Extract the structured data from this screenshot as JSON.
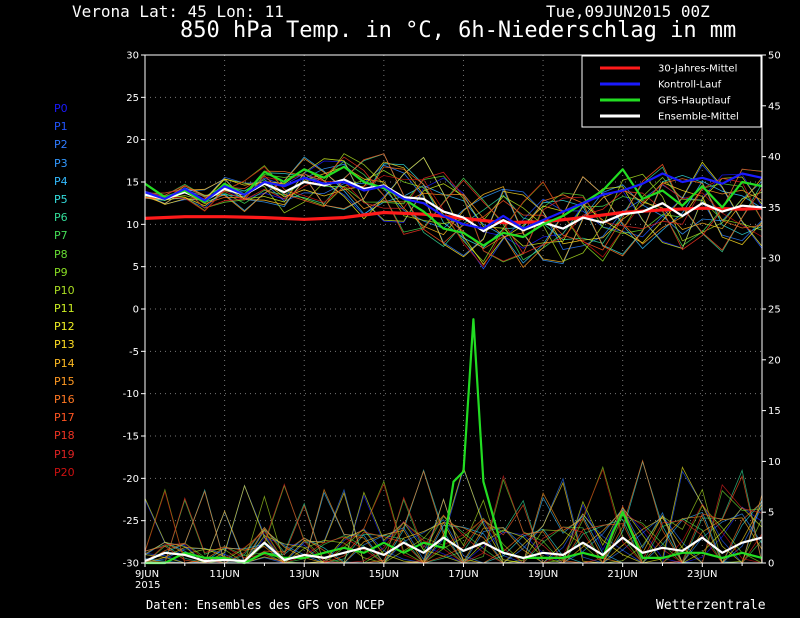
{
  "header": {
    "station": "Verona   Lat: 45 Lon: 11",
    "run": "Tue,09JUN2015 00Z",
    "title": "850 hPa Temp. in °C, 6h-Niederschlag in mm"
  },
  "footer": {
    "source": "Daten: Ensembles des GFS von NCEP",
    "brand": "Wetterzentrale"
  },
  "members": [
    {
      "label": "P0",
      "color": "#1a1aff"
    },
    {
      "label": "P1",
      "color": "#2255ff"
    },
    {
      "label": "P2",
      "color": "#2f7bff"
    },
    {
      "label": "P3",
      "color": "#3399ff"
    },
    {
      "label": "P4",
      "color": "#33bbff"
    },
    {
      "label": "P5",
      "color": "#33dddd"
    },
    {
      "label": "P6",
      "color": "#33dd99"
    },
    {
      "label": "P7",
      "color": "#44dd55"
    },
    {
      "label": "P8",
      "color": "#66dd33"
    },
    {
      "label": "P9",
      "color": "#88dd22"
    },
    {
      "label": "P10",
      "color": "#aadd22"
    },
    {
      "label": "P11",
      "color": "#ccee22"
    },
    {
      "label": "P12",
      "color": "#eeee22"
    },
    {
      "label": "P13",
      "color": "#ffdd22"
    },
    {
      "label": "P14",
      "color": "#ffbb22"
    },
    {
      "label": "P15",
      "color": "#ff9922"
    },
    {
      "label": "P16",
      "color": "#ff7722"
    },
    {
      "label": "P17",
      "color": "#ff5522"
    },
    {
      "label": "P18",
      "color": "#ee3322"
    },
    {
      "label": "P19",
      "color": "#dd2222"
    },
    {
      "label": "P20",
      "color": "#cc1111"
    }
  ],
  "chart_data": {
    "type": "line",
    "title": "850 hPa Temp. in °C, 6h-Niederschlag in mm",
    "x_unit": "days after 09JUN2015 00Z (6-hourly steps)",
    "x_range": [
      0,
      15.5
    ],
    "x_tick_labels": [
      {
        "x": 0,
        "label": "9JUN",
        "sub": "2015"
      },
      {
        "x": 2,
        "label": "11JUN"
      },
      {
        "x": 4,
        "label": "13JUN"
      },
      {
        "x": 6,
        "label": "15JUN"
      },
      {
        "x": 8,
        "label": "17JUN"
      },
      {
        "x": 10,
        "label": "19JUN"
      },
      {
        "x": 12,
        "label": "21JUN"
      },
      {
        "x": 14,
        "label": "23JUN"
      }
    ],
    "y_left": {
      "range": [
        -30,
        30
      ],
      "ticks": [
        30,
        25,
        20,
        15,
        10,
        5,
        0,
        -5,
        -10,
        -15,
        -20,
        -25,
        -30
      ]
    },
    "y_right": {
      "range": [
        0,
        50
      ],
      "ticks": [
        50,
        45,
        40,
        35,
        30,
        25,
        20,
        15,
        10,
        5,
        0
      ]
    },
    "grid": true,
    "legend_position": "top-right",
    "legend": [
      {
        "label": "30-Jahres-Mittel",
        "color": "#ff1a1a"
      },
      {
        "label": "Kontroll-Lauf",
        "color": "#1a1aff"
      },
      {
        "label": "GFS-Hauptlauf",
        "color": "#22dd22"
      },
      {
        "label": "Ensemble-Mittel",
        "color": "#ffffff"
      }
    ],
    "temperature_series": [
      {
        "name": "30-Jahres-Mittel",
        "color": "#ff1a1a",
        "x": [
          0,
          1,
          2,
          3,
          4,
          5,
          5.5,
          6,
          7,
          8,
          9,
          10,
          11,
          12,
          13,
          14,
          15,
          15.5
        ],
        "y": [
          10.7,
          10.9,
          10.9,
          10.8,
          10.6,
          10.8,
          11.1,
          11.4,
          11.2,
          10.7,
          10.2,
          10.3,
          10.8,
          11.4,
          11.7,
          11.9,
          11.8,
          11.9
        ]
      },
      {
        "name": "Ensemble-Mittel",
        "color": "#ffffff",
        "x": [
          0,
          0.5,
          1,
          1.5,
          2,
          2.5,
          3,
          3.5,
          4,
          4.5,
          5,
          5.5,
          6,
          6.5,
          7,
          7.5,
          8,
          8.5,
          9,
          9.5,
          10,
          10.5,
          11,
          11.5,
          12,
          12.5,
          13,
          13.5,
          14,
          14.5,
          15,
          15.5
        ],
        "y": [
          13.5,
          13.0,
          13.8,
          12.8,
          14.2,
          13.5,
          14.8,
          13.8,
          15.0,
          14.6,
          15.3,
          14.2,
          14.6,
          13.2,
          13.0,
          11.5,
          10.8,
          9.2,
          10.5,
          9.3,
          10.2,
          9.5,
          10.8,
          10.2,
          11.2,
          11.5,
          12.5,
          11.0,
          12.5,
          11.5,
          12.2,
          12.0
        ]
      },
      {
        "name": "GFS-Hauptlauf",
        "color": "#22dd22",
        "x": [
          0,
          0.5,
          1,
          1.5,
          2,
          2.5,
          3,
          3.5,
          4,
          4.5,
          5,
          5.5,
          6,
          6.5,
          7,
          7.5,
          8,
          8.5,
          9,
          9.5,
          10,
          10.5,
          11,
          11.5,
          12,
          12.5,
          13,
          13.5,
          14,
          14.5,
          15,
          15.5
        ],
        "y": [
          14.8,
          13.2,
          14.0,
          12.6,
          14.8,
          13.5,
          16.2,
          15.0,
          16.5,
          15.5,
          16.8,
          15.0,
          14.3,
          13.0,
          11.5,
          9.5,
          9.0,
          7.5,
          9.0,
          8.5,
          10.0,
          11.0,
          12.5,
          14.0,
          16.5,
          13.0,
          14.0,
          12.2,
          14.5,
          12.0,
          15.0,
          14.5
        ]
      },
      {
        "name": "Kontroll-Lauf",
        "color": "#1a1aff",
        "x": [
          0,
          0.5,
          1,
          1.5,
          2,
          2.5,
          3,
          3.5,
          4,
          4.5,
          5,
          5.5,
          6,
          6.5,
          7,
          7.5,
          8,
          8.5,
          9,
          9.5,
          10,
          10.5,
          11,
          11.5,
          12,
          12.5,
          13,
          13.5,
          14,
          14.5,
          15,
          15.5
        ],
        "y": [
          13.8,
          13.0,
          14.2,
          12.8,
          14.5,
          13.5,
          15.0,
          14.5,
          15.5,
          14.8,
          15.0,
          14.0,
          14.5,
          13.0,
          12.5,
          11.0,
          10.0,
          9.5,
          11.0,
          9.5,
          10.5,
          11.5,
          12.5,
          13.5,
          14.0,
          14.8,
          16.0,
          15.0,
          15.5,
          14.8,
          16.0,
          15.5
        ]
      }
    ],
    "precipitation_series": [
      {
        "name": "GFS-Hauptlauf",
        "color": "#22dd22",
        "x": [
          0,
          0.5,
          1,
          1.5,
          2,
          2.5,
          3,
          3.5,
          4,
          4.5,
          5,
          5.5,
          6,
          6.5,
          7,
          7.5,
          7.75,
          8,
          8.25,
          8.5,
          9,
          9.5,
          10,
          10.5,
          11,
          11.5,
          11.75,
          12,
          12.5,
          13,
          13.5,
          14,
          14.5,
          15,
          15.5
        ],
        "y": [
          0,
          0,
          1.0,
          0.5,
          0.5,
          0,
          1.0,
          0.5,
          0.5,
          1.0,
          1.5,
          1.0,
          2.0,
          1.0,
          2.0,
          1.5,
          8.0,
          9.0,
          24.0,
          8.0,
          1.0,
          0.5,
          0.5,
          0.5,
          1.0,
          0.5,
          3.0,
          5.0,
          0.5,
          0.5,
          1.0,
          1.0,
          0.5,
          1.0,
          0.5
        ]
      },
      {
        "name": "Ensemble-Mittel",
        "color": "#ffffff",
        "x": [
          0,
          0.5,
          1,
          1.5,
          2,
          2.5,
          3,
          3.5,
          4,
          4.5,
          5,
          5.5,
          6,
          6.5,
          7,
          7.5,
          8,
          8.5,
          9,
          9.5,
          10,
          10.5,
          11,
          11.5,
          12,
          12.5,
          13,
          13.5,
          14,
          14.5,
          15,
          15.5
        ],
        "y": [
          0.2,
          1.0,
          0.8,
          0.2,
          0.3,
          0.2,
          2.0,
          0.3,
          0.8,
          0.5,
          1.0,
          1.5,
          0.8,
          2.0,
          1.0,
          2.5,
          1.2,
          2.0,
          1.0,
          0.5,
          1.0,
          0.8,
          2.0,
          0.8,
          2.5,
          1.0,
          1.5,
          1.2,
          2.5,
          1.0,
          2.0,
          2.5
        ]
      }
    ]
  }
}
